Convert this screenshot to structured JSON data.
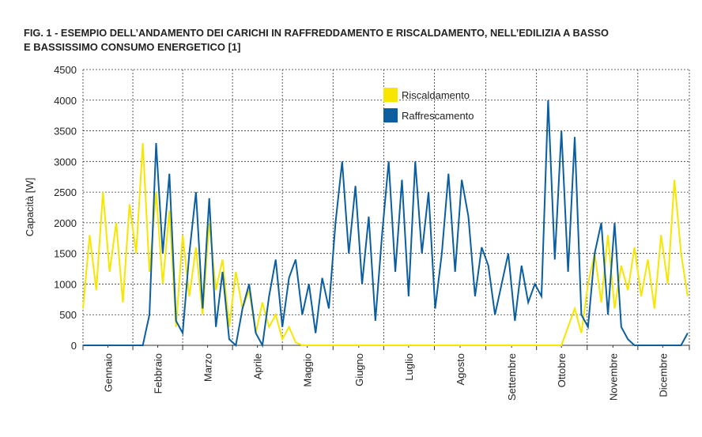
{
  "chart_data": {
    "type": "line",
    "title": "FIG. 1 - ESEMPIO DELL’ANDAMENTO DEI CARICHI IN RAFFREDDAMENTO E RISCALDAMENTO, NELL’EDILIZIA A BASSO",
    "subtitle": "E BASSISSIMO CONSUMO ENERGETICO [1]",
    "y_label": "Capacità [W]",
    "x": [
      0,
      4,
      8,
      12,
      16,
      20,
      24,
      28,
      32,
      36,
      40,
      44,
      48,
      52,
      56,
      60,
      64,
      68,
      72,
      76,
      80,
      84,
      88,
      92,
      96,
      100,
      104,
      108,
      112,
      116,
      120,
      124,
      128,
      132,
      136,
      140,
      144,
      148,
      152,
      156,
      160,
      164,
      168,
      172,
      176,
      180,
      184,
      188,
      192,
      196,
      200,
      204,
      208,
      212,
      216,
      220,
      224,
      228,
      232,
      236,
      240,
      244,
      248,
      252,
      256,
      260,
      264,
      268,
      272,
      276,
      280,
      284,
      288,
      292,
      296,
      300,
      304,
      308,
      312,
      316,
      320,
      324,
      328,
      332,
      336,
      340,
      344,
      348,
      352,
      356,
      360,
      364
    ],
    "xlim": [
      0,
      365
    ],
    "xticks": [
      {
        "value": 15,
        "label": "Gennaio"
      },
      {
        "value": 45,
        "label": "Febbraio"
      },
      {
        "value": 75,
        "label": "Marzo"
      },
      {
        "value": 105,
        "label": "Aprile"
      },
      {
        "value": 135,
        "label": "Maggio"
      },
      {
        "value": 166,
        "label": "Giugno"
      },
      {
        "value": 196,
        "label": "Luglio"
      },
      {
        "value": 227,
        "label": "Agosto"
      },
      {
        "value": 258,
        "label": "Settembre"
      },
      {
        "value": 288,
        "label": "Ottobre"
      },
      {
        "value": 319,
        "label": "Novembre"
      },
      {
        "value": 349,
        "label": "Dicembre"
      }
    ],
    "ylim": [
      0,
      4500
    ],
    "yticks": [
      0,
      500,
      1000,
      1500,
      2000,
      2500,
      3000,
      3500,
      4000,
      4500
    ],
    "grid": true,
    "legend": "top",
    "series": [
      {
        "name": "Riscaldamento",
        "color": "#f7e600",
        "values": [
          600,
          1800,
          900,
          2500,
          1200,
          2000,
          700,
          2300,
          1500,
          3300,
          1200,
          2500,
          1000,
          2200,
          300,
          1800,
          800,
          1600,
          500,
          2000,
          900,
          1400,
          300,
          1200,
          600,
          900,
          200,
          700,
          300,
          500,
          100,
          300,
          50,
          0,
          0,
          0,
          0,
          0,
          0,
          0,
          0,
          0,
          0,
          0,
          0,
          0,
          0,
          0,
          0,
          0,
          0,
          0,
          0,
          0,
          0,
          0,
          0,
          0,
          0,
          0,
          0,
          0,
          0,
          0,
          0,
          0,
          0,
          0,
          0,
          0,
          0,
          0,
          0,
          300,
          600,
          200,
          1000,
          1500,
          700,
          1800,
          600,
          1300,
          900,
          1600,
          800,
          1400,
          600,
          1800,
          1000,
          2700,
          1500,
          800
        ]
      },
      {
        "name": "Raffrescamento",
        "color": "#0b5fa0",
        "values": [
          0,
          0,
          0,
          0,
          0,
          0,
          0,
          0,
          0,
          0,
          500,
          3300,
          1500,
          2800,
          400,
          200,
          1500,
          2500,
          600,
          2400,
          300,
          1200,
          100,
          0,
          600,
          1000,
          200,
          0,
          800,
          1400,
          300,
          1100,
          1400,
          500,
          1000,
          200,
          1100,
          600,
          2000,
          3000,
          1500,
          2600,
          1000,
          2100,
          400,
          1800,
          3000,
          1200,
          2700,
          800,
          3000,
          1500,
          2500,
          600,
          1500,
          2800,
          1200,
          2700,
          2100,
          800,
          1600,
          1300,
          500,
          1000,
          1500,
          400,
          1300,
          700,
          1000,
          800,
          4000,
          1400,
          3500,
          1200,
          3400,
          500,
          300,
          1500,
          2000,
          500,
          2000,
          300,
          100,
          0,
          0,
          0,
          0,
          0,
          0,
          0,
          0,
          200
        ]
      }
    ]
  }
}
